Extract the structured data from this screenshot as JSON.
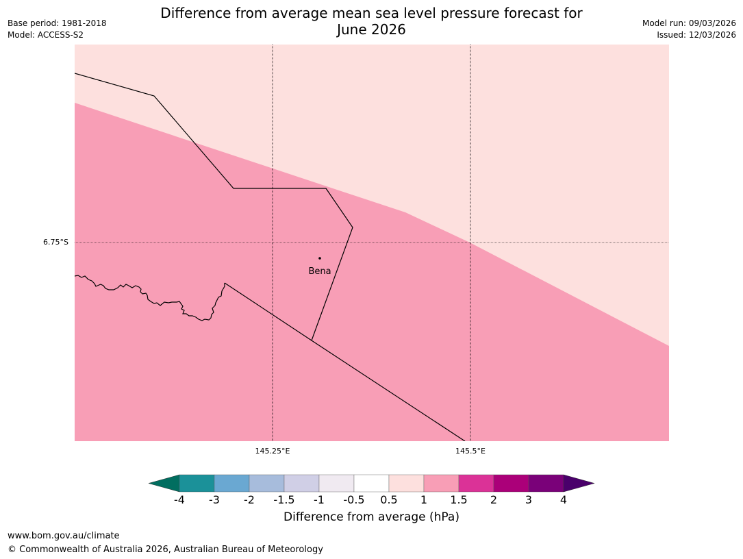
{
  "title": {
    "line1": "Difference from average mean sea level pressure forecast for",
    "line2": "June 2026"
  },
  "meta": {
    "base_period": "Base period: 1981-2018",
    "model": "Model: ACCESS-S2",
    "model_run": "Model run: 09/03/2026",
    "issued": "Issued: 12/03/2026"
  },
  "map": {
    "lat_labels": [
      "6.75°S"
    ],
    "lon_labels": [
      "145.25°E",
      "145.5°E"
    ],
    "place": {
      "name": "Bena",
      "lon": 145.31,
      "lat": -6.77
    }
  },
  "colorbar": {
    "label": "Difference from average (hPa)",
    "ticks": [
      "-4",
      "-3",
      "-2",
      "-1.5",
      "-1",
      "-0.5",
      "0.5",
      "1",
      "1.5",
      "2",
      "3",
      "4"
    ],
    "under_color": "#016e60",
    "over_color": "#4a006b",
    "bins": [
      {
        "from": "-4",
        "to": "-3",
        "color": "#1b9199"
      },
      {
        "from": "-3",
        "to": "-2",
        "color": "#6aa8d2"
      },
      {
        "from": "-2",
        "to": "-1.5",
        "color": "#a7bcdc"
      },
      {
        "from": "-1.5",
        "to": "-1",
        "color": "#d0cfe6"
      },
      {
        "from": "-1",
        "to": "-0.5",
        "color": "#f0eaf1"
      },
      {
        "from": "-0.5",
        "to": "0.5",
        "color": "#ffffff"
      },
      {
        "from": "0.5",
        "to": "1",
        "color": "#fde0de"
      },
      {
        "from": "1",
        "to": "1.5",
        "color": "#f89eb6"
      },
      {
        "from": "1.5",
        "to": "2",
        "color": "#db3297"
      },
      {
        "from": "2",
        "to": "3",
        "color": "#ab0079"
      },
      {
        "from": "3",
        "to": "4",
        "color": "#7a0179"
      }
    ]
  },
  "colors": {
    "region_light": "#fde0de",
    "region_dark": "#f89eb6"
  },
  "footer": {
    "url": "www.bom.gov.au/climate",
    "copyright": "© Commonwealth of Australia 2026, Australian Bureau of Meteorology"
  }
}
